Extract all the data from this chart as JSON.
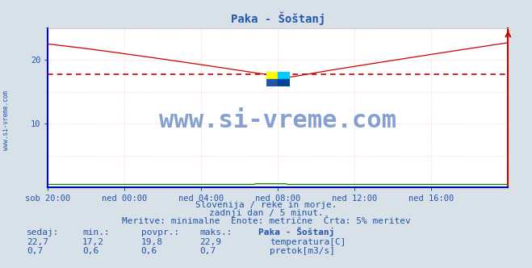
{
  "title": "Paka - Šoštanj",
  "bg_color": "#d8e0e8",
  "plot_bg_color": "#ffffff",
  "grid_h_color": "#ffcccc",
  "grid_v_color": "#ffcccc",
  "x_labels": [
    "sob 20:00",
    "ned 00:00",
    "ned 04:00",
    "ned 08:00",
    "ned 12:00",
    "ned 16:00"
  ],
  "ylim": [
    0,
    25
  ],
  "yticks": [
    10,
    20
  ],
  "temp_color": "#cc0000",
  "flow_color": "#008800",
  "avg_color": "#cc0000",
  "avg_value": 19.8,
  "avg_scaled": 17.8,
  "spine_left_color": "#0000dd",
  "spine_bottom_color": "#0000dd",
  "spine_right_color": "#cc0000",
  "spine_top_color": "#cccccc",
  "watermark_text": "www.si-vreme.com",
  "watermark_color": "#2255aa",
  "watermark_alpha": 0.55,
  "watermark_fontsize": 22,
  "logo_colors": [
    "#ffff00",
    "#00ccff",
    "#2255aa",
    "#004499"
  ],
  "side_label": "www.si-vreme.com",
  "side_label_color": "#2255aa",
  "subtitle1": "Slovenija / reke in morje.",
  "subtitle2": "zadnji dan / 5 minut.",
  "subtitle3": "Meritve: minimalne  Enote: metrične  Črta: 5% meritev",
  "subtitle_color": "#2255aa",
  "subtitle_fontsize": 8,
  "table_headers": [
    "sedaj:",
    "min.:",
    "povpr.:",
    "maks.:",
    "Paka - Šoštanj"
  ],
  "table_row1": [
    "22,7",
    "17,2",
    "19,8",
    "22,9",
    "temperatura[C]"
  ],
  "table_row2": [
    "0,7",
    "0,6",
    "0,6",
    "0,7",
    "pretok[m3/s]"
  ],
  "table_color": "#2255aa",
  "table_fontsize": 8,
  "temp_color_sq": "#cc0000",
  "flow_color_sq": "#008800",
  "n_points": 289
}
